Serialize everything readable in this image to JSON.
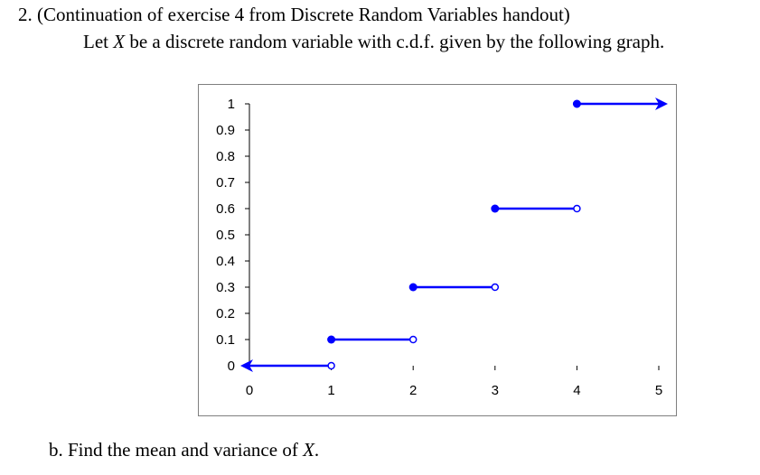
{
  "question": {
    "heading": "2. (Continuation of exercise 4 from Discrete Random Variables handout)",
    "intro_before": "Let ",
    "intro_var": "X",
    "intro_after": " be a discrete random variable with c.d.f. given by the following graph.",
    "part_b_before": "b. Find the mean and variance of ",
    "part_b_var": "X",
    "part_b_after": "."
  },
  "colors": {
    "line": "#0000ff",
    "axis": "#000000",
    "frame": "#7f7f7f"
  },
  "chart_data": {
    "type": "line",
    "title": "",
    "xlabel": "",
    "ylabel": "",
    "xlim": [
      0,
      5
    ],
    "ylim": [
      0,
      1
    ],
    "x_ticks": [
      "0",
      "1",
      "2",
      "3",
      "4",
      "5"
    ],
    "y_ticks": [
      "0",
      "0.1",
      "0.2",
      "0.3",
      "0.4",
      "0.5",
      "0.6",
      "0.7",
      "0.8",
      "0.9",
      "1"
    ],
    "grid": false,
    "legend": "none",
    "step_segments": [
      {
        "x_start": 0,
        "x_end": 1,
        "y": 0,
        "left": "arrow",
        "right": "open"
      },
      {
        "x_start": 1,
        "x_end": 2,
        "y": 0.1,
        "left": "closed",
        "right": "open"
      },
      {
        "x_start": 2,
        "x_end": 3,
        "y": 0.3,
        "left": "closed",
        "right": "open"
      },
      {
        "x_start": 3,
        "x_end": 4,
        "y": 0.6,
        "left": "closed",
        "right": "open"
      },
      {
        "x_start": 4,
        "x_end": 5,
        "y": 1,
        "left": "closed",
        "right": "arrow"
      }
    ]
  }
}
